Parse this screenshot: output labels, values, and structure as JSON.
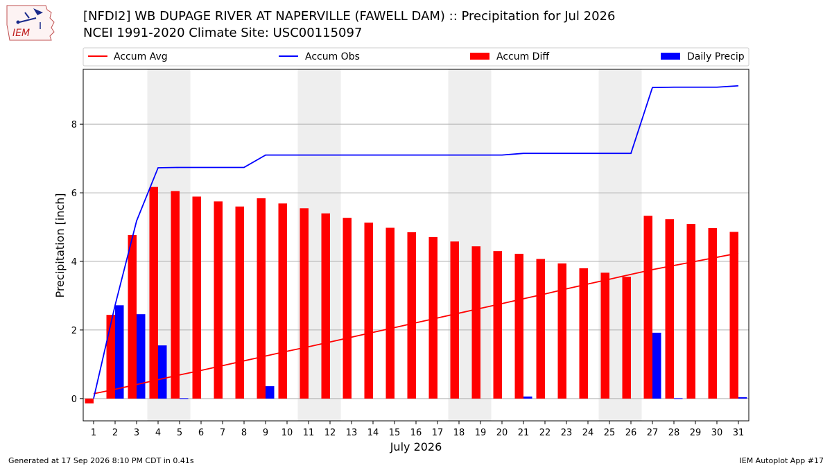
{
  "header": {
    "title_line1": "[NFDI2] WB DUPAGE RIVER AT NAPERVILLE (FAWELL DAM) :: Precipitation for Jul 2026",
    "title_line2": "NCEI 1991-2020 Climate Site: USC00115097",
    "logo_text": "IEM"
  },
  "footer": {
    "generated": "Generated at 17 Sep 2026 8:10 PM CDT in 0.41s",
    "app": "IEM Autoplot App #17"
  },
  "colors": {
    "avg": "#ff0000",
    "obs": "#0000ff",
    "diff": "#ff0000",
    "daily": "#0000ff",
    "weekend_band": "#eeeeee",
    "grid": "#b0b0b0"
  },
  "chart_data": {
    "type": "bar",
    "xlabel": "July 2026",
    "ylabel": "Precipitation [inch]",
    "ylim": [
      -0.65,
      9.6
    ],
    "yticks": [
      0,
      2,
      4,
      6,
      8
    ],
    "grid": "horizontal",
    "legend_placement": "top, above plot",
    "days": [
      1,
      2,
      3,
      4,
      5,
      6,
      7,
      8,
      9,
      10,
      11,
      12,
      13,
      14,
      15,
      16,
      17,
      18,
      19,
      20,
      21,
      22,
      23,
      24,
      25,
      26,
      27,
      28,
      29,
      30,
      31
    ],
    "weekend_bands": [
      [
        4,
        5
      ],
      [
        11,
        12
      ],
      [
        18,
        19
      ],
      [
        25,
        26
      ]
    ],
    "series": [
      {
        "name": "Accum Avg",
        "kind": "line",
        "values": [
          0.14,
          0.27,
          0.41,
          0.55,
          0.69,
          0.82,
          0.96,
          1.1,
          1.24,
          1.38,
          1.51,
          1.65,
          1.79,
          1.93,
          2.07,
          2.21,
          2.35,
          2.49,
          2.63,
          2.77,
          2.91,
          3.05,
          3.2,
          3.34,
          3.48,
          3.62,
          3.76,
          3.88,
          4.0,
          4.12,
          4.24
        ]
      },
      {
        "name": "Accum Obs",
        "kind": "line",
        "values": [
          0.0,
          2.72,
          5.18,
          6.73,
          6.74,
          6.74,
          6.74,
          6.74,
          7.1,
          7.1,
          7.1,
          7.1,
          7.1,
          7.1,
          7.1,
          7.1,
          7.1,
          7.1,
          7.1,
          7.1,
          7.15,
          7.15,
          7.15,
          7.15,
          7.15,
          7.15,
          9.07,
          9.08,
          9.08,
          9.08,
          9.12
        ]
      },
      {
        "name": "Accum Diff",
        "kind": "bar",
        "values": [
          -0.14,
          2.44,
          4.77,
          6.17,
          6.05,
          5.89,
          5.75,
          5.6,
          5.84,
          5.69,
          5.55,
          5.4,
          5.27,
          5.13,
          4.98,
          4.85,
          4.71,
          4.58,
          4.44,
          4.3,
          4.22,
          4.07,
          3.94,
          3.8,
          3.67,
          3.55,
          5.33,
          5.23,
          5.09,
          4.97,
          4.86
        ]
      },
      {
        "name": "Daily Precip",
        "kind": "bar",
        "values": [
          0.0,
          2.72,
          2.46,
          1.55,
          0.01,
          0.0,
          0.0,
          0.0,
          0.36,
          0.0,
          0.0,
          0.0,
          0.0,
          0.0,
          0.0,
          0.0,
          0.0,
          0.0,
          0.0,
          0.0,
          0.06,
          0.0,
          0.0,
          0.0,
          0.0,
          0.0,
          1.92,
          0.01,
          0.0,
          0.0,
          0.04
        ]
      }
    ]
  }
}
